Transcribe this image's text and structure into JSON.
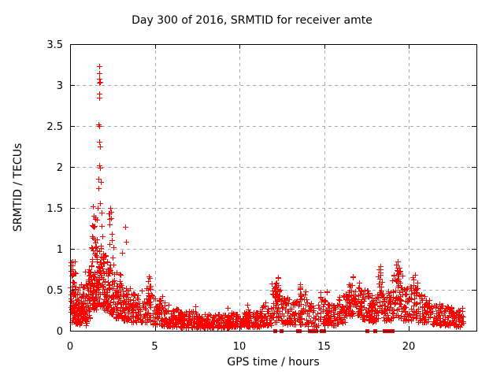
{
  "window": {
    "background": "#ffffff"
  },
  "chart_data": {
    "type": "scatter",
    "title": "Day 300 of 2016, SRMTID for receiver amte",
    "xlabel": "GPS time / hours",
    "ylabel": "SRMTID / TECUs",
    "xlim": [
      0,
      24
    ],
    "ylim": [
      0,
      3.5
    ],
    "x_ticks": [
      0,
      5,
      10,
      15,
      20
    ],
    "y_ticks": [
      0,
      0.5,
      1,
      1.5,
      2,
      2.5,
      3,
      3.5
    ],
    "grid": true,
    "legend": "none",
    "marker": {
      "shape": "plus",
      "size": 7,
      "color": "#ff0000"
    },
    "flag_marker": {
      "shape": "filled-square",
      "size": 5,
      "color": "#ff0000",
      "y_value": 0
    },
    "colors": {
      "marker": "#ff0000",
      "grid": "#a8a8a8",
      "border": "#000000",
      "text": "#000000",
      "background": "#ffffff"
    },
    "seed": 2016300,
    "outlier_points": [
      [
        1.72,
        3.23
      ],
      [
        1.74,
        3.14
      ],
      [
        1.72,
        3.08
      ],
      [
        1.75,
        3.04
      ],
      [
        1.7,
        3.03
      ],
      [
        1.73,
        2.89
      ],
      [
        1.71,
        2.85
      ],
      [
        1.68,
        2.52
      ],
      [
        1.74,
        2.5
      ],
      [
        1.7,
        2.31
      ],
      [
        1.77,
        2.25
      ],
      [
        1.72,
        2.02
      ],
      [
        1.75,
        1.99
      ],
      [
        1.69,
        1.86
      ],
      [
        1.8,
        1.82
      ],
      [
        1.66,
        1.74
      ],
      [
        1.78,
        1.56
      ],
      [
        1.62,
        1.5
      ],
      [
        1.84,
        1.44
      ],
      [
        1.58,
        1.36
      ],
      [
        1.87,
        1.28
      ],
      [
        1.92,
        1.15
      ],
      [
        1.6,
        1.12
      ],
      [
        1.35,
        1.52
      ],
      [
        1.39,
        1.4
      ],
      [
        1.44,
        1.28
      ],
      [
        1.31,
        1.15
      ],
      [
        1.47,
        1.08
      ],
      [
        2.36,
        1.5
      ],
      [
        2.41,
        1.45
      ],
      [
        2.33,
        1.3
      ],
      [
        2.48,
        1.18
      ],
      [
        2.55,
        1.02
      ],
      [
        3.26,
        1.27
      ],
      [
        3.29,
        1.09
      ],
      [
        3.06,
        0.95
      ],
      [
        0.12,
        0.85
      ],
      [
        12.3,
        0.65
      ],
      [
        18.32,
        0.79
      ],
      [
        19.33,
        0.85
      ],
      [
        16.7,
        0.66
      ],
      [
        20.35,
        0.68
      ],
      [
        13.58,
        0.57
      ],
      [
        4.65,
        0.66
      ],
      [
        5.45,
        0.42
      ],
      [
        7.4,
        0.3
      ],
      [
        9.3,
        0.28
      ],
      [
        10.45,
        0.32
      ],
      [
        11.55,
        0.35
      ]
    ],
    "flag_points_hours": [
      12.1,
      12.5,
      13.45,
      13.55,
      14.15,
      14.25,
      14.35,
      14.45,
      14.55,
      14.85,
      15.0,
      17.55,
      18.0,
      18.6,
      18.7,
      18.8,
      18.95,
      19.05
    ],
    "point_clusters": [
      {
        "x0": 0.0,
        "x1": 0.35,
        "ymin": 0.22,
        "ymax": 0.85,
        "n": 40,
        "skew": 1.3
      },
      {
        "x0": 0.0,
        "x1": 0.5,
        "ymin": 0.08,
        "ymax": 0.45,
        "n": 40,
        "skew": 1.2
      },
      {
        "x0": 0.35,
        "x1": 0.85,
        "ymin": 0.1,
        "ymax": 0.6,
        "n": 55,
        "skew": 1.3
      },
      {
        "x0": 0.5,
        "x1": 1.0,
        "ymin": 0.06,
        "ymax": 0.3,
        "n": 30,
        "skew": 1.2
      },
      {
        "x0": 0.85,
        "x1": 1.25,
        "ymin": 0.15,
        "ymax": 0.8,
        "n": 50,
        "skew": 1.4
      },
      {
        "x0": 1.25,
        "x1": 1.55,
        "ymin": 0.25,
        "ymax": 1.05,
        "n": 50,
        "skew": 1.4
      },
      {
        "x0": 1.28,
        "x1": 1.5,
        "ymin": 1.0,
        "ymax": 1.55,
        "n": 7,
        "skew": 1.0
      },
      {
        "x0": 1.55,
        "x1": 1.95,
        "ymin": 0.3,
        "ymax": 1.05,
        "n": 65,
        "skew": 1.4
      },
      {
        "x0": 1.95,
        "x1": 2.25,
        "ymin": 0.25,
        "ymax": 0.95,
        "n": 50,
        "skew": 1.4
      },
      {
        "x0": 2.25,
        "x1": 2.6,
        "ymin": 0.2,
        "ymax": 0.9,
        "n": 50,
        "skew": 1.4
      },
      {
        "x0": 2.3,
        "x1": 2.55,
        "ymin": 0.95,
        "ymax": 1.5,
        "n": 6,
        "skew": 1.0
      },
      {
        "x0": 2.6,
        "x1": 3.05,
        "ymin": 0.15,
        "ymax": 0.72,
        "n": 50,
        "skew": 1.4
      },
      {
        "x0": 3.05,
        "x1": 3.55,
        "ymin": 0.12,
        "ymax": 0.55,
        "n": 50,
        "skew": 1.4
      },
      {
        "x0": 3.55,
        "x1": 4.1,
        "ymin": 0.1,
        "ymax": 0.45,
        "n": 50,
        "skew": 1.3
      },
      {
        "x0": 4.1,
        "x1": 4.85,
        "ymin": 0.1,
        "ymax": 0.55,
        "n": 55,
        "skew": 1.4
      },
      {
        "x0": 4.55,
        "x1": 4.75,
        "ymin": 0.3,
        "ymax": 0.65,
        "n": 7,
        "skew": 1.0
      },
      {
        "x0": 4.85,
        "x1": 5.35,
        "ymin": 0.08,
        "ymax": 0.4,
        "n": 45,
        "skew": 1.4
      },
      {
        "x0": 5.35,
        "x1": 5.85,
        "ymin": 0.06,
        "ymax": 0.35,
        "n": 45,
        "skew": 1.5
      },
      {
        "x0": 5.85,
        "x1": 6.5,
        "ymin": 0.05,
        "ymax": 0.28,
        "n": 55,
        "skew": 1.5
      },
      {
        "x0": 6.5,
        "x1": 7.5,
        "ymin": 0.04,
        "ymax": 0.24,
        "n": 85,
        "skew": 1.5
      },
      {
        "x0": 7.5,
        "x1": 8.5,
        "ymin": 0.04,
        "ymax": 0.2,
        "n": 85,
        "skew": 1.5
      },
      {
        "x0": 8.5,
        "x1": 9.5,
        "ymin": 0.04,
        "ymax": 0.2,
        "n": 85,
        "skew": 1.5
      },
      {
        "x0": 9.5,
        "x1": 10.5,
        "ymin": 0.05,
        "ymax": 0.22,
        "n": 85,
        "skew": 1.5
      },
      {
        "x0": 10.5,
        "x1": 11.3,
        "ymin": 0.05,
        "ymax": 0.26,
        "n": 65,
        "skew": 1.5
      },
      {
        "x0": 11.3,
        "x1": 11.9,
        "ymin": 0.07,
        "ymax": 0.33,
        "n": 50,
        "skew": 1.4
      },
      {
        "x0": 11.9,
        "x1": 12.45,
        "ymin": 0.1,
        "ymax": 0.6,
        "n": 50,
        "skew": 1.4
      },
      {
        "x0": 12.2,
        "x1": 12.4,
        "ymin": 0.35,
        "ymax": 0.66,
        "n": 8,
        "skew": 1.0
      },
      {
        "x0": 12.45,
        "x1": 13.2,
        "ymin": 0.08,
        "ymax": 0.42,
        "n": 55,
        "skew": 1.4
      },
      {
        "x0": 13.2,
        "x1": 14.0,
        "ymin": 0.07,
        "ymax": 0.48,
        "n": 55,
        "skew": 1.4
      },
      {
        "x0": 13.5,
        "x1": 13.65,
        "ymin": 0.3,
        "ymax": 0.56,
        "n": 6,
        "skew": 1.0
      },
      {
        "x0": 14.0,
        "x1": 14.7,
        "ymin": 0.05,
        "ymax": 0.35,
        "n": 38,
        "skew": 1.4
      },
      {
        "x0": 14.7,
        "x1": 15.2,
        "ymin": 0.08,
        "ymax": 0.5,
        "n": 40,
        "skew": 1.3
      },
      {
        "x0": 15.2,
        "x1": 15.85,
        "ymin": 0.06,
        "ymax": 0.32,
        "n": 48,
        "skew": 1.4
      },
      {
        "x0": 15.85,
        "x1": 16.35,
        "ymin": 0.1,
        "ymax": 0.46,
        "n": 45,
        "skew": 1.3
      },
      {
        "x0": 16.35,
        "x1": 17.2,
        "ymin": 0.18,
        "ymax": 0.58,
        "n": 75,
        "skew": 1.3
      },
      {
        "x0": 16.6,
        "x1": 16.78,
        "ymin": 0.3,
        "ymax": 0.66,
        "n": 6,
        "skew": 1.0
      },
      {
        "x0": 16.95,
        "x1": 17.1,
        "ymin": 0.3,
        "ymax": 0.62,
        "n": 5,
        "skew": 1.0
      },
      {
        "x0": 17.2,
        "x1": 17.8,
        "ymin": 0.12,
        "ymax": 0.5,
        "n": 50,
        "skew": 1.3
      },
      {
        "x0": 17.8,
        "x1": 18.2,
        "ymin": 0.1,
        "ymax": 0.45,
        "n": 40,
        "skew": 1.3
      },
      {
        "x0": 18.2,
        "x1": 18.45,
        "ymin": 0.2,
        "ymax": 0.78,
        "n": 28,
        "skew": 1.2
      },
      {
        "x0": 18.45,
        "x1": 19.0,
        "ymin": 0.12,
        "ymax": 0.5,
        "n": 45,
        "skew": 1.3
      },
      {
        "x0": 19.0,
        "x1": 19.65,
        "ymin": 0.15,
        "ymax": 0.8,
        "n": 60,
        "skew": 1.4
      },
      {
        "x0": 19.25,
        "x1": 19.45,
        "ymin": 0.4,
        "ymax": 0.84,
        "n": 8,
        "skew": 1.0
      },
      {
        "x0": 19.65,
        "x1": 20.2,
        "ymin": 0.12,
        "ymax": 0.55,
        "n": 45,
        "skew": 1.3
      },
      {
        "x0": 20.2,
        "x1": 20.55,
        "ymin": 0.15,
        "ymax": 0.66,
        "n": 35,
        "skew": 1.3
      },
      {
        "x0": 20.55,
        "x1": 21.3,
        "ymin": 0.1,
        "ymax": 0.45,
        "n": 55,
        "skew": 1.4
      },
      {
        "x0": 21.3,
        "x1": 22.1,
        "ymin": 0.07,
        "ymax": 0.35,
        "n": 55,
        "skew": 1.5
      },
      {
        "x0": 22.1,
        "x1": 22.8,
        "ymin": 0.06,
        "ymax": 0.3,
        "n": 50,
        "skew": 1.4
      },
      {
        "x0": 22.8,
        "x1": 23.25,
        "ymin": 0.05,
        "ymax": 0.28,
        "n": 35,
        "skew": 1.4
      }
    ]
  }
}
